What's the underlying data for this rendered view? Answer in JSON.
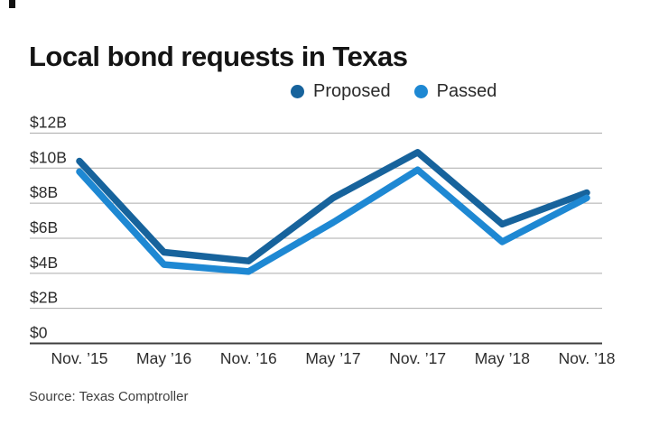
{
  "title": "Local bond requests in Texas",
  "source": "Source: Texas Comptroller",
  "colors": {
    "proposed": "#17639c",
    "passed": "#1e88d3",
    "gridline": "#ababab",
    "axis_line": "#3f3f3f",
    "text": "#2c2c2c"
  },
  "chart_data": {
    "type": "line",
    "title": "Local bond requests in Texas",
    "categories": [
      "Nov. ’15",
      "May ’16",
      "Nov. ’16",
      "May ’17",
      "Nov. ’17",
      "May ’18",
      "Nov. ’18"
    ],
    "series": [
      {
        "name": "Proposed",
        "color": "#17639c",
        "values": [
          10.4,
          5.2,
          4.7,
          8.3,
          10.9,
          6.8,
          8.6
        ]
      },
      {
        "name": "Passed",
        "color": "#1e88d3",
        "values": [
          9.8,
          4.5,
          4.1,
          6.9,
          9.9,
          5.8,
          8.3
        ]
      }
    ],
    "unit": "billions USD",
    "ytick_values": [
      0,
      2,
      4,
      6,
      8,
      10,
      12
    ],
    "ytick_labels": [
      "$0",
      "$2B",
      "$4B",
      "$6B",
      "$8B",
      "$10B",
      "$12B"
    ],
    "ylim": [
      0,
      12
    ],
    "grid": true,
    "legend_position": "top"
  }
}
